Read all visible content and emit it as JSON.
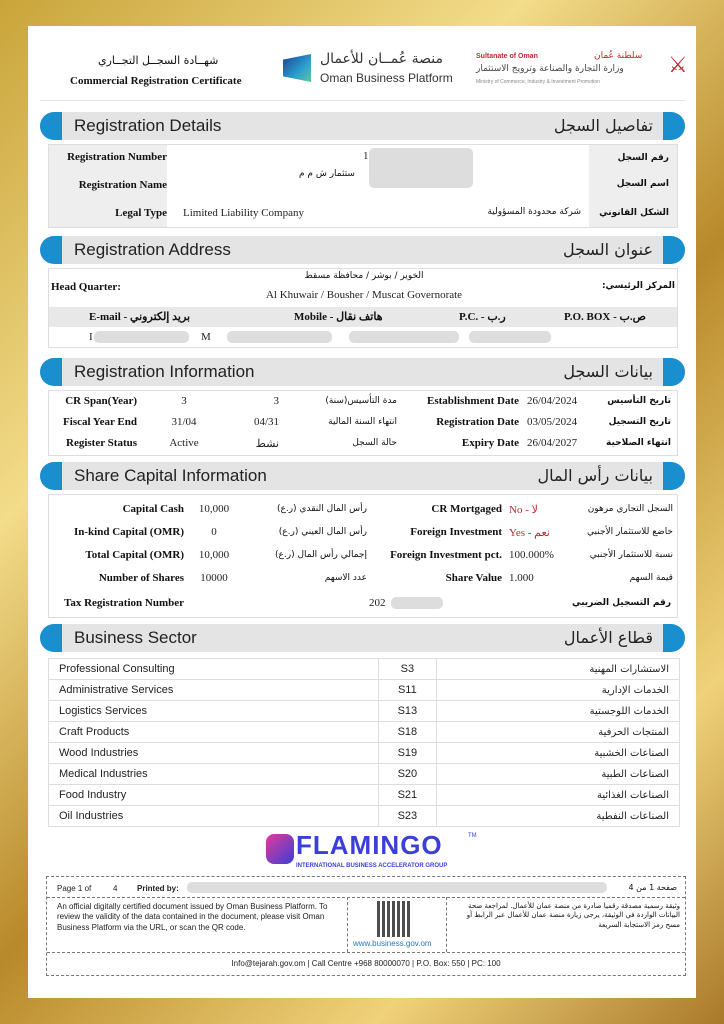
{
  "header": {
    "title_ar": "شهــادة السجــل التجــاري",
    "title_en": "Commercial Registration Certificate",
    "platform_ar": "منصة عُمــان للأعمال",
    "platform_en": "Oman Business Platform",
    "ministry_top_en": "Sultanate of Oman",
    "ministry_top_ar": "سلطنة عُمان",
    "ministry_ar": "وزارة التجارة والصناعة وترويج الاستثمار",
    "ministry_en": "Ministry of Commerce, Industry & Investment Promotion"
  },
  "details": {
    "title_en": "Registration Details",
    "title_ar": "تفاصيل السجل",
    "reg_number_label": "Registration Number",
    "reg_number_label_ar": "رقم السجل",
    "reg_number": "1",
    "reg_name_label": "Registration Name",
    "reg_name_label_ar": "اسم السجل",
    "reg_name": "ستثمار ش م م",
    "legal_type_label": "Legal Type",
    "legal_type": "Limited Liability Company",
    "legal_type_ar": "شركة محدودة المسؤولية",
    "legal_type_label_ar": "الشكل القانوني"
  },
  "address": {
    "title_en": "Registration Address",
    "title_ar": "عنوان السجل",
    "hq_label": "Head Quarter:",
    "hq_label_ar": "المركز الرئيسي:",
    "hq_ar": "الخوير / بوشر / محافظة مسقط",
    "hq_en": "Al Khuwair / Bousher / Muscat Governorate",
    "email_label": "E-mail - بريد إلكتروني",
    "mobile_label": "Mobile - هاتف نقال",
    "pc_label": "P.C. - ر.ب",
    "pobox_label": "P.O. BOX - ص.ب",
    "email_start": "I",
    "email_end": "M"
  },
  "info": {
    "title_en": "Registration Information",
    "title_ar": "بيانات السجل",
    "rows": [
      {
        "l": "CR Span(Year)",
        "v1": "3",
        "v2": "3",
        "la": "مدة التأسيس(سنة)",
        "r": "Establishment Date",
        "rv": "26/04/2024",
        "ra": "تاريخ التأسيس"
      },
      {
        "l": "Fiscal Year End",
        "v1": "31/04",
        "v2": "04/31",
        "la": "انتهاء السنة المالية",
        "r": "Registration Date",
        "rv": "03/05/2024",
        "ra": "تاريخ التسجيل"
      },
      {
        "l": "Register Status",
        "v1": "Active",
        "v2": "نشط",
        "la": "حالة السجل",
        "r": "Expiry Date",
        "rv": "26/04/2027",
        "ra": "انتهاء الصلاحية"
      }
    ]
  },
  "capital": {
    "title_en": "Share Capital Information",
    "title_ar": "بيانات رأس المال",
    "rows": [
      {
        "l": "Capital Cash",
        "v": "10,000",
        "la": "رأس المال النقدي (ر.ع)",
        "r": "CR Mortgaged",
        "rv": "No - لا",
        "ra": "السجل التجاري مرهون"
      },
      {
        "l": "In-kind Capital (OMR)",
        "v": "0",
        "la": "رأس المال العيني (ر.ع)",
        "r": "Foreign Investment",
        "rv": "Yes - نعم",
        "ra": "خاضع للاستثمار الأجنبي"
      },
      {
        "l": "Total Capital (OMR)",
        "v": "10,000",
        "la": "إجمالي رأس المال (ر.ع)",
        "r": "Foreign Investment pct.",
        "rv": "100.000%",
        "ra": "نسبة للاستثمار الأجنبي"
      },
      {
        "l": "Number of Shares",
        "v": "10000",
        "la": "عدد الاسهم",
        "r": "Share Value",
        "rv": "1.000",
        "ra": "قيمة السهم"
      }
    ],
    "tax_label": "Tax Registration Number",
    "tax_value": "202",
    "tax_label_ar": "رقم التسجيل الضريبي"
  },
  "sector": {
    "title_en": "Business Sector",
    "title_ar": "قطاع الأعمال",
    "rows": [
      {
        "en": "Professional Consulting",
        "code": "S3",
        "ar": "الاستشارات المهنية"
      },
      {
        "en": "Administrative  Services",
        "code": "S11",
        "ar": "الخدمات الإدارية"
      },
      {
        "en": "Logistics Services",
        "code": "S13",
        "ar": "الخدمات اللوجستية"
      },
      {
        "en": "Craft Products",
        "code": "S18",
        "ar": "المنتجات الحرفية"
      },
      {
        "en": "Wood Industries",
        "code": "S19",
        "ar": "الصناعات الخشبية"
      },
      {
        "en": "Medical Industries",
        "code": "S20",
        "ar": "الصناعات الطبية"
      },
      {
        "en": "Food Industry",
        "code": "S21",
        "ar": "الصناعات الغذائية"
      },
      {
        "en": "Oil Industries",
        "code": "S23",
        "ar": "الصناعات النفطية"
      }
    ]
  },
  "logo": {
    "name": "FLAMINGO",
    "tm": "TM",
    "tagline": "INTERNATIONAL BUSINESS ACCELERATOR GROUP"
  },
  "footer": {
    "page_label": "Page 1 of",
    "page_total": "4",
    "printed_by": "Printed by:",
    "page_ar": "صفحة  1  من  4",
    "note_en": "An official digitally certified document issued by Oman Business Platform. To review the validity of the data contained in the document, please visit Oman Business Platform via the URL, or scan the QR code.",
    "note_ar": "وثيقة رسمية مصدقة رقميا صادرة من منصة عمان للأعمال. لمراجعة صحة البيانات الواردة في الوثيقة، يرجى زيارة منصة عمان للأعمال عبر الرابط أو مسح رمز الاستجابة السريعة",
    "url": "www.business.gov.om",
    "contact": "Info@tejarah.gov.om | Call Centre +968 80000070 | P.O. Box: 550 | PC: 100"
  },
  "colors": {
    "accent": "#1a8fd0",
    "gold": "#d4b04a",
    "red": "#c0282e"
  }
}
